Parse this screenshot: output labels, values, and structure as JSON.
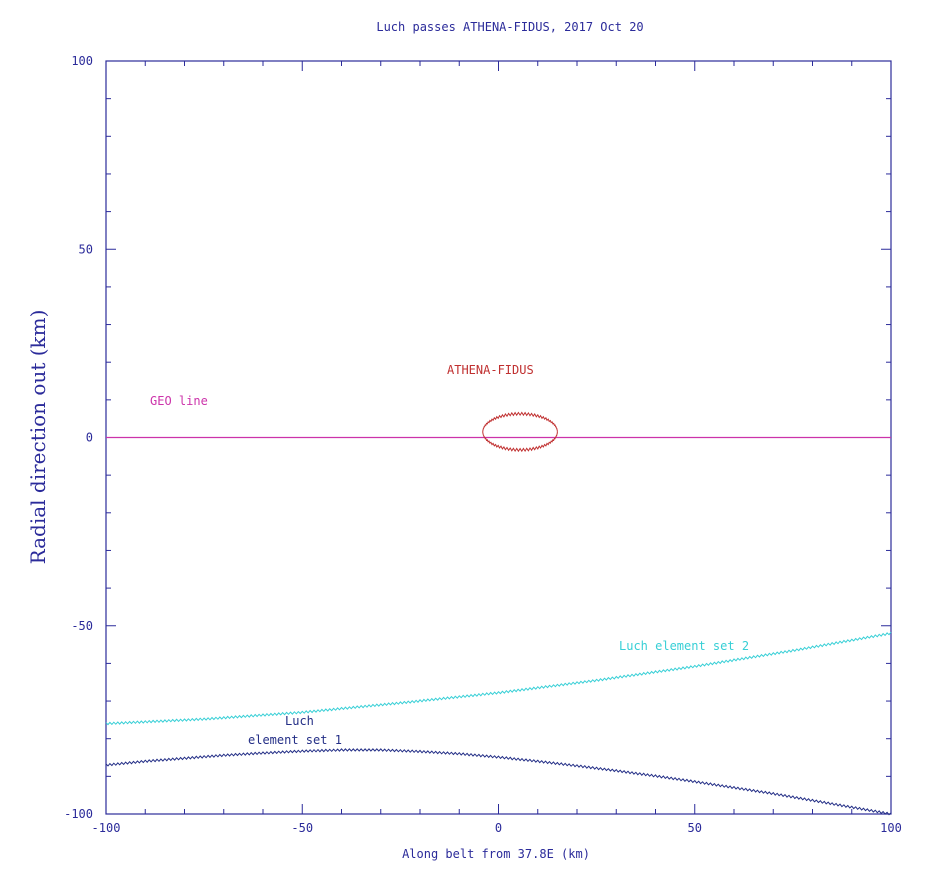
{
  "chart_data": {
    "type": "line",
    "title": "Luch passes ATHENA-FIDUS, 2017 Oct 20",
    "xlabel": "Along belt from 37.8E (km)",
    "ylabel": "Radial direction out (km)",
    "xlim": [
      -100,
      100
    ],
    "ylim": [
      -100,
      100
    ],
    "xticks": [
      -100,
      -50,
      0,
      50,
      100
    ],
    "yticks": [
      100,
      50,
      0,
      -50,
      -100
    ],
    "xtick_labels": [
      "-100",
      "-50",
      "0",
      "50",
      "100"
    ],
    "ytick_labels": [
      "100",
      "50",
      "0",
      "-50",
      "-100"
    ],
    "grid": false,
    "colors": {
      "axes": "#2b2b9a",
      "geo": "#cc33aa",
      "athena": "#c03030",
      "set1": "#232e86",
      "set2": "#37cfd6"
    },
    "series": [
      {
        "key": "geo",
        "name": "GEO line",
        "x": [
          -100,
          100
        ],
        "y": [
          0,
          0
        ]
      },
      {
        "key": "athena",
        "name": "ATHENA-FIDUS",
        "shape": "ellipse",
        "center": [
          5.5,
          1.5
        ],
        "radius": [
          9.5,
          4.8
        ]
      },
      {
        "key": "set2",
        "name": "Luch element set 2",
        "x": [
          -100,
          -75,
          -50,
          -25,
          0,
          25,
          50,
          75,
          100
        ],
        "y": [
          -76,
          -74.8,
          -73,
          -70.5,
          -67.8,
          -64.5,
          -60.8,
          -56.6,
          -52
        ]
      },
      {
        "key": "set1",
        "name": "Luch element set 1",
        "x": [
          -100,
          -90,
          -80,
          -70,
          -60,
          -50,
          -40,
          -30,
          -20,
          -10,
          0,
          10,
          20,
          30,
          40,
          50,
          60,
          70,
          80,
          90,
          100
        ],
        "y": [
          -87,
          -86,
          -85.2,
          -84.4,
          -83.8,
          -83.3,
          -83,
          -83,
          -83.4,
          -84,
          -84.9,
          -86,
          -87.2,
          -88.5,
          -89.9,
          -91.4,
          -93,
          -94.6,
          -96.4,
          -98.2,
          -100
        ]
      }
    ],
    "labels": {
      "geo": "GEO line",
      "athena": "ATHENA-FIDUS",
      "set2": "Luch element set 2",
      "set1_line1": "Luch",
      "set1_line2": "element set 1"
    }
  }
}
